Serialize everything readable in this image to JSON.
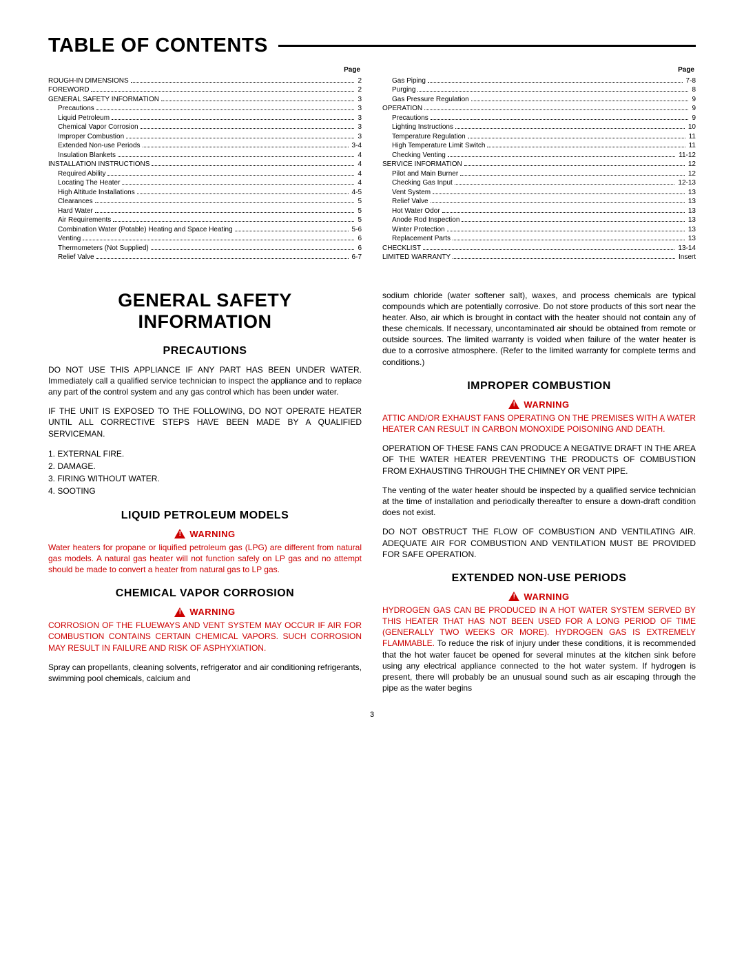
{
  "page_number": "3",
  "toc": {
    "title": "TABLE OF CONTENTS",
    "page_label": "Page",
    "left": [
      {
        "label": "ROUGH-IN DIMENSIONS",
        "page": "2",
        "indent": 0
      },
      {
        "label": "FOREWORD",
        "page": "2",
        "indent": 0
      },
      {
        "label": "GENERAL SAFETY INFORMATION",
        "page": "3",
        "indent": 0
      },
      {
        "label": "Precautions",
        "page": "3",
        "indent": 1
      },
      {
        "label": "Liquid Petroleum",
        "page": "3",
        "indent": 1
      },
      {
        "label": "Chemical Vapor Corrosion",
        "page": "3",
        "indent": 1
      },
      {
        "label": "Improper Combustion",
        "page": "3",
        "indent": 1
      },
      {
        "label": "Extended Non-use Periods",
        "page": "3-4",
        "indent": 1
      },
      {
        "label": "Insulation Blankets",
        "page": "4",
        "indent": 1
      },
      {
        "label": "INSTALLATION INSTRUCTIONS",
        "page": "4",
        "indent": 0
      },
      {
        "label": "Required Ability",
        "page": "4",
        "indent": 1
      },
      {
        "label": "Locating The Heater",
        "page": "4",
        "indent": 1
      },
      {
        "label": "High Altitude Installations",
        "page": "4-5",
        "indent": 1
      },
      {
        "label": "Clearances",
        "page": "5",
        "indent": 1
      },
      {
        "label": "Hard Water",
        "page": "5",
        "indent": 1
      },
      {
        "label": "Air Requirements",
        "page": "5",
        "indent": 1
      },
      {
        "label": "Combination Water (Potable) Heating and Space Heating",
        "page": "5-6",
        "indent": 1
      },
      {
        "label": "Venting",
        "page": "6",
        "indent": 1
      },
      {
        "label": "Thermometers (Not Supplied)",
        "page": "6",
        "indent": 1
      },
      {
        "label": "Relief Valve",
        "page": "6-7",
        "indent": 1
      }
    ],
    "right": [
      {
        "label": "Gas Piping",
        "page": "7-8",
        "indent": 1
      },
      {
        "label": "Purging",
        "page": "8",
        "indent": 1
      },
      {
        "label": "Gas Pressure Regulation",
        "page": "9",
        "indent": 1
      },
      {
        "label": "OPERATION",
        "page": "9",
        "indent": 0
      },
      {
        "label": "Precautions",
        "page": "9",
        "indent": 1
      },
      {
        "label": "Lighting Instructions",
        "page": "10",
        "indent": 1
      },
      {
        "label": "Temperature Regulation",
        "page": "11",
        "indent": 1
      },
      {
        "label": "High Temperature Limit Switch",
        "page": "11",
        "indent": 1
      },
      {
        "label": "Checking Venting",
        "page": "11-12",
        "indent": 1
      },
      {
        "label": "SERVICE INFORMATION",
        "page": "12",
        "indent": 0
      },
      {
        "label": "Pilot and Main Burner",
        "page": "12",
        "indent": 1
      },
      {
        "label": "Checking Gas Input",
        "page": "12-13",
        "indent": 1
      },
      {
        "label": "Vent System",
        "page": "13",
        "indent": 1
      },
      {
        "label": "Relief Valve",
        "page": "13",
        "indent": 1
      },
      {
        "label": "Hot Water Odor",
        "page": "13",
        "indent": 1
      },
      {
        "label": "Anode Rod Inspection",
        "page": "13",
        "indent": 1
      },
      {
        "label": "Winter Protection",
        "page": "13",
        "indent": 1
      },
      {
        "label": "Replacement Parts",
        "page": "13",
        "indent": 1
      },
      {
        "label": "CHECKLIST",
        "page": "13-14",
        "indent": 0
      },
      {
        "label": "LIMITED WARRANTY",
        "page": "Insert",
        "indent": 0
      }
    ]
  },
  "headings": {
    "general_safety_1": "GENERAL SAFETY",
    "general_safety_2": "INFORMATION",
    "precautions": "PRECAUTIONS",
    "lpm": "LIQUID PETROLEUM MODELS",
    "cvc": "CHEMICAL VAPOR CORROSION",
    "improper": "IMPROPER COMBUSTION",
    "extended": "EXTENDED NON-USE PERIODS"
  },
  "warning_label": "WARNING",
  "paragraphs": {
    "p1": "DO NOT USE THIS APPLIANCE IF ANY PART HAS BEEN UNDER WATER. Immediately call a qualified service technician to inspect the appliance and to replace any part of the control system and any gas control which has been under water.",
    "p2": "IF THE UNIT IS EXPOSED TO THE FOLLOWING, DO NOT OPERATE HEATER UNTIL ALL CORRECTIVE STEPS HAVE BEEN MADE BY A QUALIFIED SERVICEMAN.",
    "list": [
      "1.  EXTERNAL FIRE.",
      "2.  DAMAGE.",
      "3.  FIRING WITHOUT WATER.",
      "4.  SOOTING"
    ],
    "lpm_red": "Water heaters for propane or liquified petroleum gas (LPG) are different from natural gas models.  A natural gas heater will not function safely on LP gas and no attempt should be made to convert a heater from natural gas to LP gas.",
    "cvc_red": "CORROSION OF THE FLUEWAYS AND VENT SYSTEM MAY OCCUR IF AIR FOR COMBUSTION CONTAINS CERTAIN CHEMICAL VAPORS.  SUCH CORROSION MAY RESULT IN FAILURE AND RISK OF ASPHYXIATION.",
    "cvc_black": "Spray can propellants, cleaning solvents, refrigerator and air conditioning refrigerants, swimming pool chemicals, calcium and",
    "right_top": "sodium chloride (water softener salt), waxes, and process chemicals are typical compounds which are potentially corrosive.  Do not store products of this sort near the heater.  Also, air which is brought in contact with the heater should not contain any of these chemicals.  If necessary, uncontaminated air should be obtained from remote or outside sources.  The limited warranty is voided when failure of the water heater is due to a corrosive atmosphere. (Refer to the limited warranty for complete terms and conditions.)",
    "improper_red": "ATTIC AND/OR EXHAUST FANS OPERATING ON THE PREMISES WITH A WATER HEATER CAN RESULT IN CARBON MONOXIDE POISONING AND DEATH.",
    "improper_p1": "OPERATION OF THESE FANS CAN PRODUCE A NEGATIVE DRAFT IN THE AREA OF THE WATER HEATER PREVENTING THE PRODUCTS OF COMBUSTION FROM EXHAUSTING THROUGH THE CHIMNEY OR VENT PIPE.",
    "improper_p2": "The venting of the water heater should be inspected by a qualified service technician at the time of installation and periodically thereafter to ensure a down-draft condition does not exist.",
    "improper_p3": "DO NOT OBSTRUCT THE FLOW OF COMBUSTION AND VENTILATING AIR.  ADEQUATE AIR FOR COMBUSTION AND VENTILATION MUST BE PROVIDED FOR SAFE OPERATION.",
    "extended_red1": "HYDROGEN GAS CAN BE PRODUCED IN A HOT WATER SYSTEM SERVED BY THIS HEATER THAT HAS NOT BEEN USED FOR A LONG PERIOD OF TIME (GENERALLY TWO WEEKS OR MORE). HYDROGEN GAS IS EXTREMELY FLAMMABLE.",
    "extended_black": "To reduce the risk of injury under these conditions, it is recommended that the hot water faucet be opened for several minutes at the kitchen sink before using any electrical appliance connected to the hot water system.  If hydrogen is present, there will probably be an unusual sound such as air escaping through the pipe as the water begins"
  }
}
